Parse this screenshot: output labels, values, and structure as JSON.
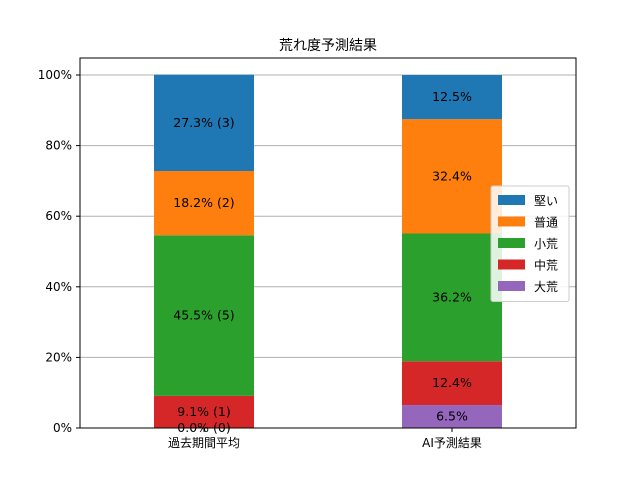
{
  "chart_data": {
    "type": "bar",
    "stacked": true,
    "title": "荒れ度予測結果",
    "xlabel": "",
    "ylabel": "",
    "ylim": [
      0,
      100
    ],
    "y_ticks": [
      "0%",
      "20%",
      "40%",
      "60%",
      "80%",
      "100%"
    ],
    "grid": "horizontal",
    "legend_position": "right",
    "categories": [
      "過去期間平均",
      "AI予測結果"
    ],
    "series": [
      {
        "name": "大荒",
        "color": "#9467bd",
        "values": [
          0.0,
          6.5
        ],
        "labels": [
          "0.0% (0)",
          "6.5%"
        ]
      },
      {
        "name": "中荒",
        "color": "#d62728",
        "values": [
          9.1,
          12.4
        ],
        "labels": [
          "9.1% (1)",
          "12.4%"
        ]
      },
      {
        "name": "小荒",
        "color": "#2ca02c",
        "values": [
          45.5,
          36.2
        ],
        "labels": [
          "45.5% (5)",
          "36.2%"
        ]
      },
      {
        "name": "普通",
        "color": "#ff7f0e",
        "values": [
          18.2,
          32.4
        ],
        "labels": [
          "18.2% (2)",
          "32.4%"
        ]
      },
      {
        "name": "堅い",
        "color": "#1f77b4",
        "values": [
          27.3,
          12.5
        ],
        "labels": [
          "27.3% (3)",
          "12.5%"
        ]
      }
    ],
    "legend_order": [
      "堅い",
      "普通",
      "小荒",
      "中荒",
      "大荒"
    ]
  }
}
